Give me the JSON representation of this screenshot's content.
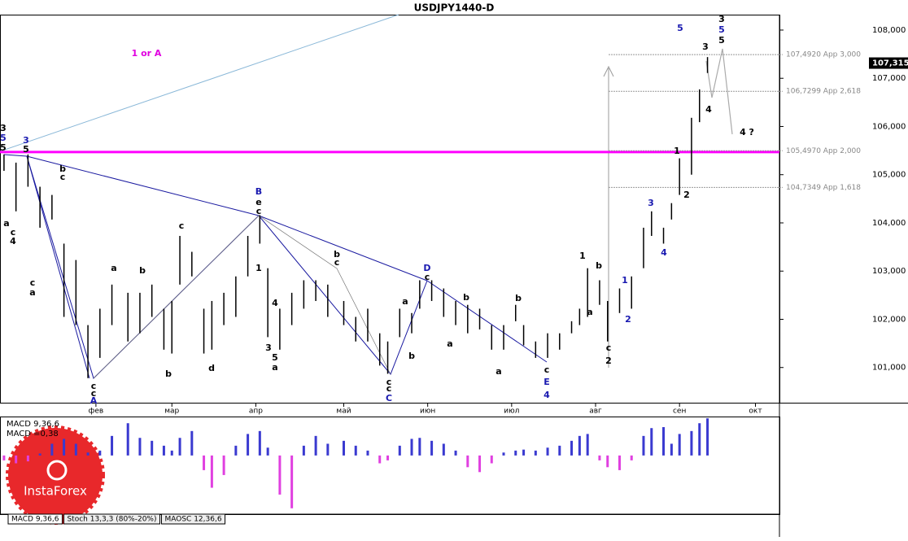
{
  "title": "USDJPY1440-D",
  "chart_data": [
    {
      "type": "ohlc",
      "x": [
        1,
        4,
        7,
        10,
        13,
        16,
        19,
        22,
        25,
        28,
        32,
        35,
        38,
        41,
        43,
        45,
        48,
        51,
        53,
        56,
        59,
        62,
        65,
        67,
        70,
        73,
        76,
        79,
        82,
        86,
        89,
        92,
        95,
        97,
        100,
        103,
        105,
        108,
        111,
        114,
        117,
        120,
        123,
        126,
        129,
        131,
        134,
        137,
        140,
        143,
        145,
        147,
        150,
        152,
        155,
        158,
        161,
        163,
        166,
        168,
        170,
        173,
        175,
        177
      ],
      "high": [
        105.42,
        105.25,
        105.42,
        104.75,
        104.58,
        103.57,
        103.23,
        101.88,
        102.22,
        102.72,
        102.55,
        102.55,
        102.72,
        102.22,
        102.38,
        103.73,
        103.4,
        102.22,
        102.38,
        102.55,
        102.89,
        103.73,
        104.16,
        103.06,
        102.22,
        102.55,
        102.81,
        102.81,
        102.72,
        102.38,
        102.05,
        102.22,
        101.71,
        101.54,
        102.22,
        102.13,
        102.81,
        102.81,
        102.64,
        102.38,
        102.3,
        102.22,
        101.88,
        101.88,
        102.3,
        101.88,
        101.54,
        101.71,
        101.71,
        101.96,
        102.22,
        103.06,
        102.81,
        102.38,
        102.64,
        102.89,
        103.9,
        104.24,
        103.9,
        104.41,
        105.34,
        106.18,
        106.77,
        107.44
      ],
      "low": [
        105.08,
        104.24,
        104.75,
        103.9,
        104.07,
        102.05,
        101.88,
        100.78,
        101.2,
        101.88,
        101.54,
        101.71,
        102.05,
        101.37,
        101.29,
        102.72,
        102.89,
        101.29,
        101.37,
        101.88,
        102.05,
        102.89,
        103.57,
        101.63,
        101.37,
        101.88,
        102.22,
        102.38,
        102.05,
        101.88,
        101.54,
        101.54,
        101.04,
        100.87,
        101.63,
        101.71,
        102.22,
        102.38,
        102.05,
        101.88,
        101.71,
        101.79,
        101.37,
        101.37,
        101.96,
        101.46,
        101.2,
        101.2,
        101.37,
        101.71,
        101.88,
        102.05,
        102.3,
        101.54,
        102.13,
        102.22,
        103.06,
        103.73,
        103.57,
        104.07,
        104.58,
        105.0,
        106.09,
        107.11
      ],
      "color": "#000000",
      "xlim": [
        0,
        195
      ],
      "xticks": [
        {
          "value": 24,
          "label": "фев"
        },
        {
          "value": 43,
          "label": "мар"
        },
        {
          "value": 64,
          "label": "апр"
        },
        {
          "value": 86,
          "label": "май"
        },
        {
          "value": 107,
          "label": "июн"
        },
        {
          "value": 128,
          "label": "июл"
        },
        {
          "value": 149,
          "label": "авг"
        },
        {
          "value": 170,
          "label": "сен"
        },
        {
          "value": 189,
          "label": "окт"
        }
      ],
      "ylim": [
        100.27,
        108.32
      ],
      "yticks": [
        {
          "value": 101,
          "label": "101,000"
        },
        {
          "value": 102,
          "label": "102,000"
        },
        {
          "value": 103,
          "label": "103,000"
        },
        {
          "value": 104,
          "label": "104,000"
        },
        {
          "value": 105,
          "label": "105,000"
        },
        {
          "value": 106,
          "label": "106,000"
        },
        {
          "value": 107,
          "label": "107,000"
        },
        {
          "value": 108,
          "label": "108,000"
        }
      ],
      "last_price": {
        "value": 107.315,
        "label": "107,315"
      },
      "levels": [
        {
          "value": 107.492,
          "label": "107,4920 App 3,000"
        },
        {
          "value": 106.7299,
          "label": "106,7299 App 2,618"
        },
        {
          "value": 105.497,
          "label": "105,4970 App 2,000"
        },
        {
          "value": 104.7349,
          "label": "104,7349 App 1,618"
        }
      ],
      "support": {
        "value": 105.47,
        "color": "#ff00ff"
      }
    },
    {
      "type": "histogram",
      "title": "MACD 9,36,6",
      "subtitle": "MACD =0,38",
      "x": [
        1,
        4,
        7,
        10,
        13,
        16,
        19,
        22,
        25,
        28,
        32,
        35,
        38,
        41,
        43,
        45,
        48,
        51,
        53,
        56,
        59,
        62,
        65,
        67,
        70,
        73,
        76,
        79,
        82,
        86,
        89,
        92,
        95,
        97,
        100,
        103,
        105,
        108,
        111,
        114,
        117,
        120,
        123,
        126,
        129,
        131,
        134,
        137,
        140,
        143,
        145,
        147,
        150,
        152,
        155,
        158,
        161,
        163,
        166,
        168,
        170,
        173,
        175,
        177
      ],
      "values": [
        -0.05,
        -0.08,
        -0.06,
        0.02,
        0.12,
        0.17,
        0.12,
        0.03,
        0.05,
        0.2,
        0.33,
        0.18,
        0.15,
        0.1,
        0.05,
        0.18,
        0.25,
        -0.15,
        -0.33,
        -0.2,
        0.1,
        0.22,
        0.25,
        0.08,
        -0.4,
        -0.54,
        0.1,
        0.2,
        0.12,
        0.15,
        0.1,
        0.05,
        -0.08,
        -0.05,
        0.1,
        0.17,
        0.18,
        0.15,
        0.12,
        0.05,
        -0.12,
        -0.17,
        -0.08,
        0.03,
        0.05,
        0.06,
        0.05,
        0.08,
        0.1,
        0.15,
        0.2,
        0.22,
        -0.05,
        -0.12,
        -0.15,
        -0.05,
        0.2,
        0.28,
        0.29,
        0.12,
        0.22,
        0.25,
        0.33,
        0.38
      ],
      "xlim": [
        0,
        195
      ],
      "ylim": [
        -0.6,
        0.39
      ],
      "color_positive": "#3a3ad0",
      "color_negative": "#e040e0"
    }
  ],
  "annotations": [
    "1 or A",
    "5",
    "3",
    "5",
    "5",
    "3",
    "4",
    "4 ?",
    "3",
    "5",
    "5",
    "3",
    "5",
    "b",
    "c",
    "a",
    "c",
    "4",
    "c",
    "a",
    "c",
    "b",
    "a",
    "B",
    "e",
    "c",
    "b",
    "c",
    "D",
    "c",
    "C",
    "c",
    "c",
    "A",
    "c",
    "c",
    "E",
    "4",
    "c",
    "1",
    "b",
    "a",
    "c",
    "2",
    "1",
    "2",
    "3",
    "4",
    "1",
    "2",
    "b",
    "d",
    "a",
    "3",
    "5",
    "4",
    "1",
    "a",
    "b",
    "b",
    "a",
    "b",
    "a"
  ],
  "tabs": [
    "MACD 9,36,6",
    "Stoch 13,3,3 (80%-20%)",
    "MAOSC 12,36,6"
  ],
  "logo": "InstaForex"
}
